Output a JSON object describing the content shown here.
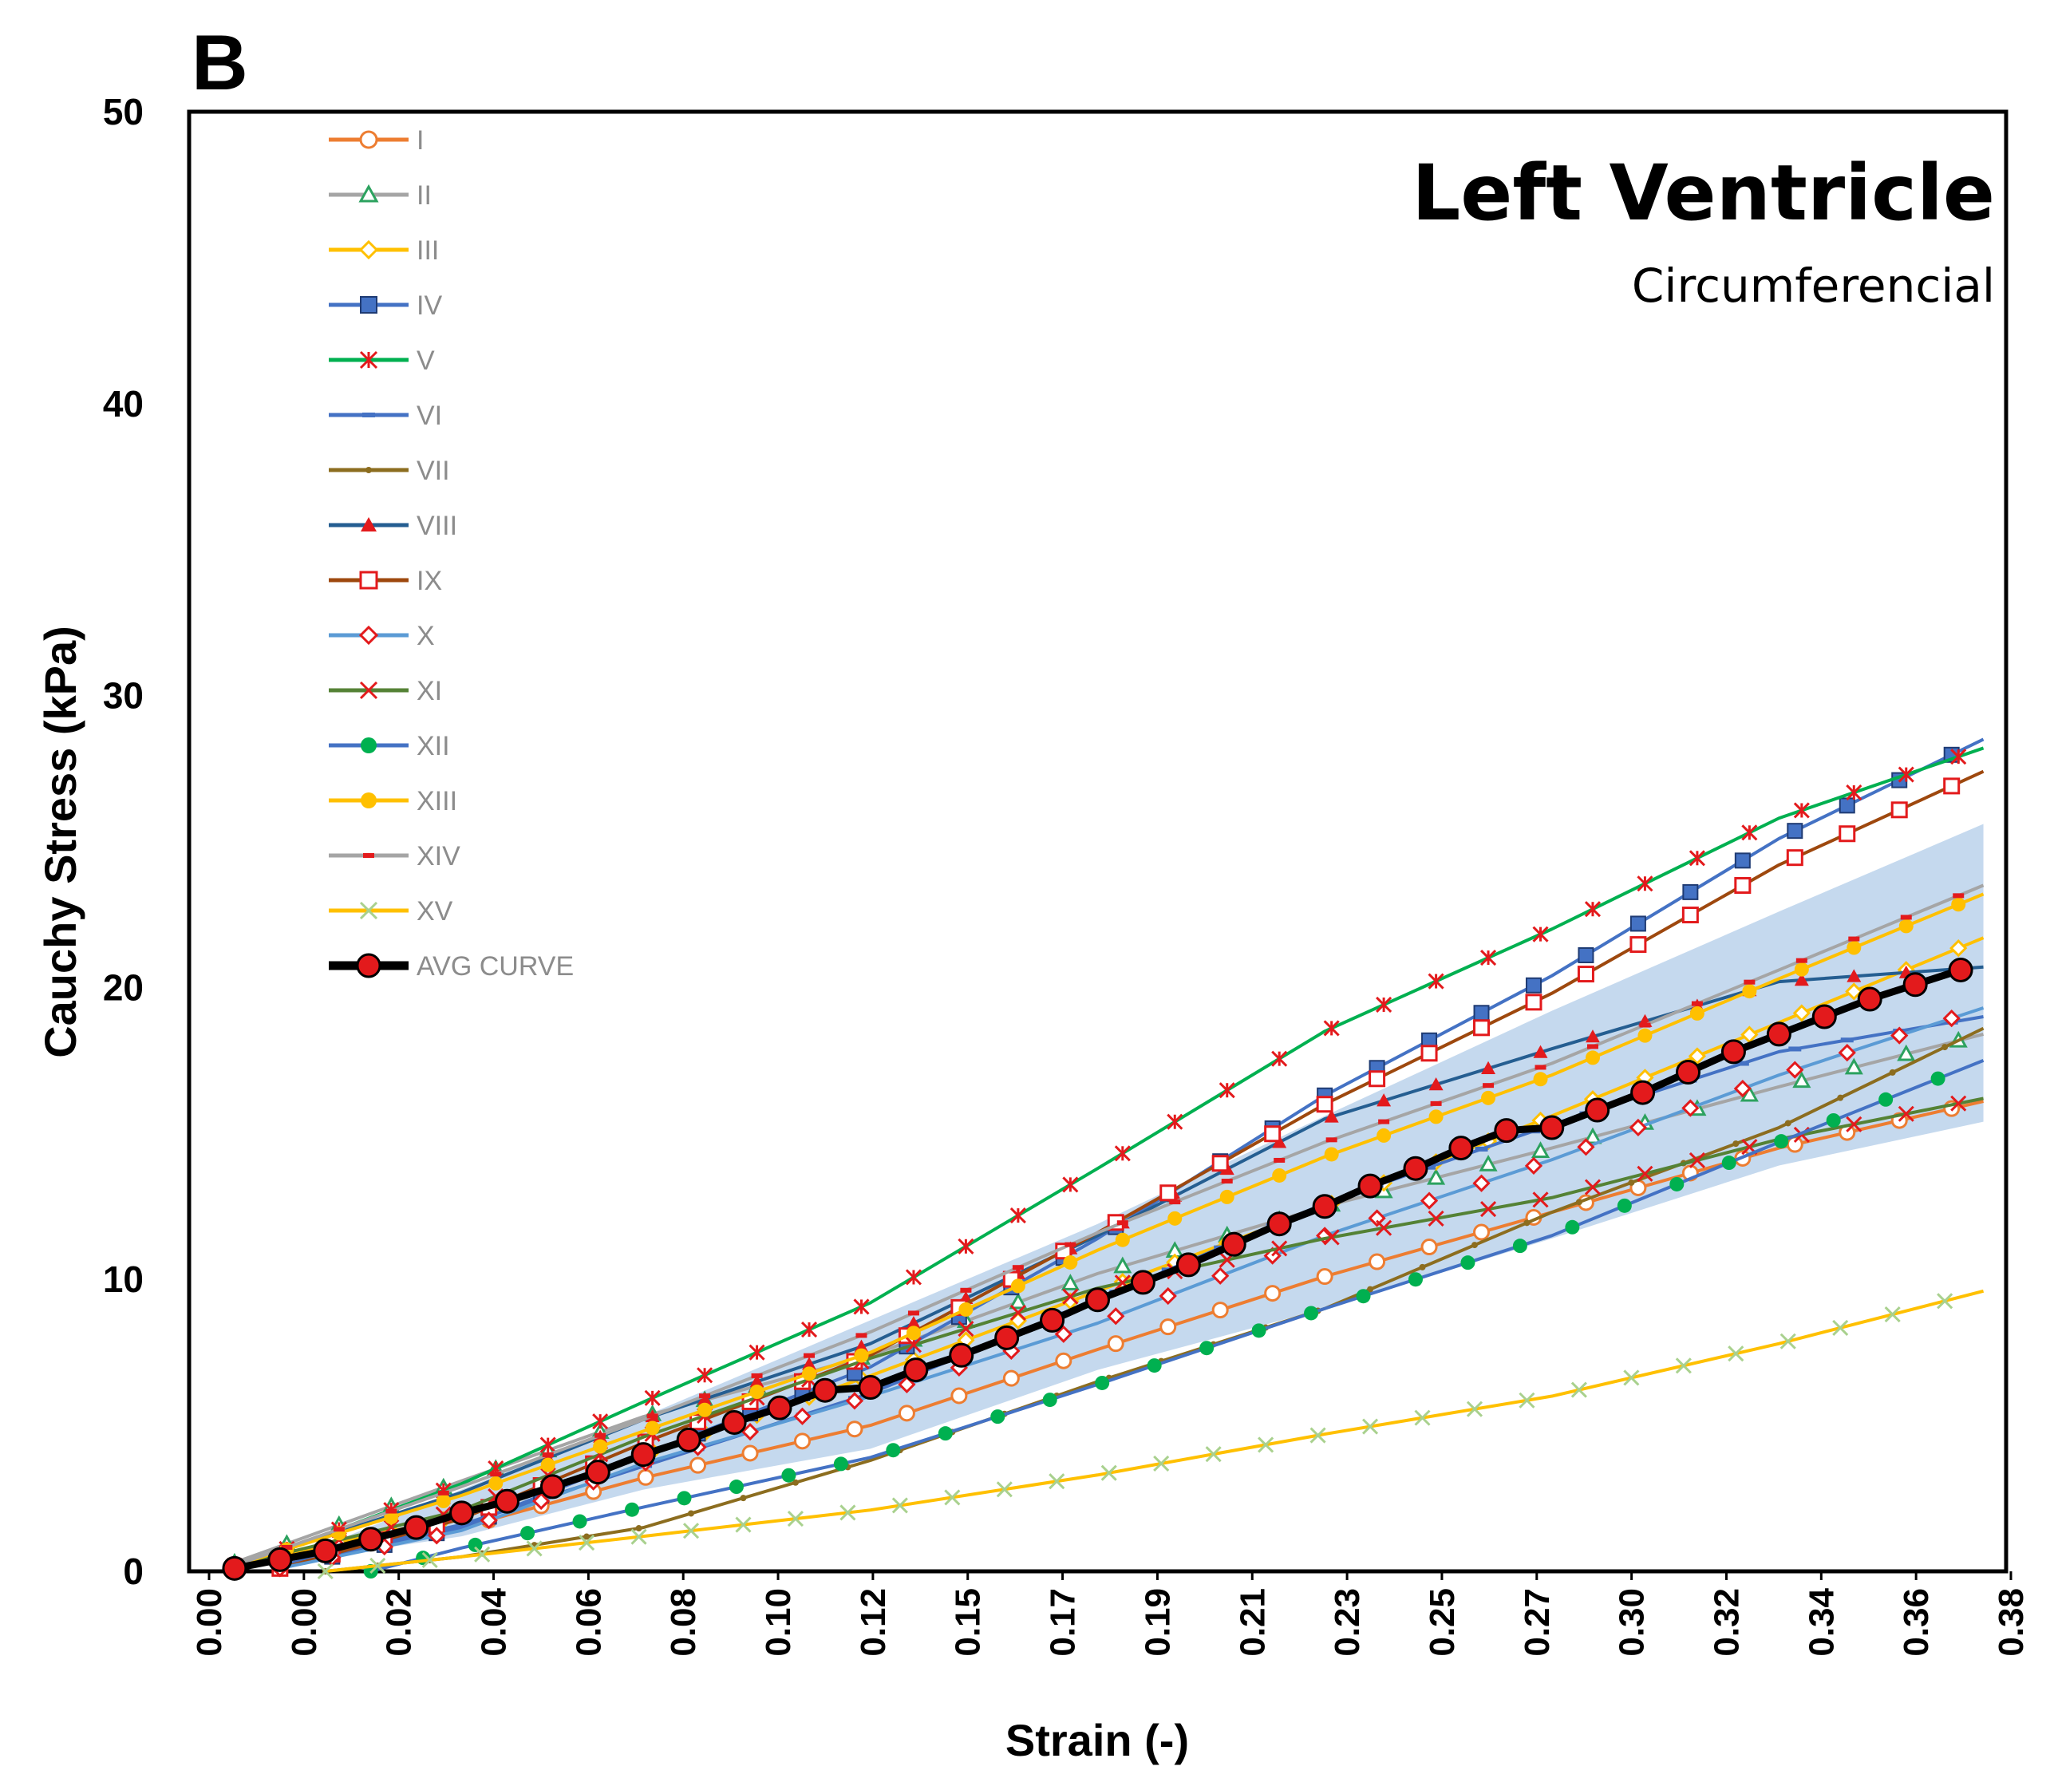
{
  "panel_label": "B",
  "chart_data": {
    "type": "line",
    "title": "Left Ventricle",
    "subtitle": "Circumferencial",
    "xlabel": "Strain (-)",
    "ylabel": "Cauchy Stress (kPa)",
    "xlim": [
      0.0,
      0.4
    ],
    "ylim": [
      0,
      50
    ],
    "yticks": [
      0,
      10,
      20,
      30,
      40,
      50
    ],
    "xtick_labels": [
      "0.00",
      "0.00",
      "0.02",
      "0.04",
      "0.06",
      "0.08",
      "0.10",
      "0.12",
      "0.15",
      "0.17",
      "0.19",
      "0.21",
      "0.23",
      "0.25",
      "0.27",
      "0.30",
      "0.32",
      "0.34",
      "0.36",
      "0.38"
    ],
    "grid": false,
    "legend_position": "top-left",
    "band": {
      "name": "std band",
      "color": "#b7d0ea",
      "x": [
        0.03,
        0.06,
        0.1,
        0.15,
        0.2,
        0.25,
        0.3,
        0.35,
        0.395
      ],
      "upper": [
        0.9,
        2.8,
        5.3,
        8.6,
        11.9,
        15.6,
        19.2,
        22.6,
        25.6
      ],
      "lower": [
        0.5,
        1.2,
        2.8,
        4.2,
        6.9,
        9.0,
        11.4,
        13.9,
        15.4
      ]
    },
    "series": [
      {
        "name": "I",
        "color": "#ed7d31",
        "marker": "circle-open",
        "x": [
          0.02,
          0.06,
          0.1,
          0.15,
          0.2,
          0.25,
          0.3,
          0.35,
          0.395
        ],
        "y": [
          0.1,
          1.5,
          3.2,
          5.0,
          7.6,
          10.1,
          12.3,
          14.5,
          16.1
        ]
      },
      {
        "name": "II",
        "color": "#a5a5a5",
        "marker": "triangle-open",
        "x": [
          0.01,
          0.06,
          0.1,
          0.15,
          0.2,
          0.25,
          0.3,
          0.35,
          0.395
        ],
        "y": [
          0.3,
          3.1,
          5.3,
          7.4,
          10.2,
          12.5,
          14.5,
          16.6,
          18.4
        ]
      },
      {
        "name": "III",
        "color": "#ffc000",
        "marker": "diamond-open",
        "x": [
          0.01,
          0.06,
          0.1,
          0.15,
          0.2,
          0.25,
          0.3,
          0.35,
          0.395
        ],
        "y": [
          0.2,
          1.9,
          4.0,
          6.7,
          9.6,
          12.5,
          15.6,
          18.8,
          21.7
        ]
      },
      {
        "name": "IV",
        "color": "#4472c4",
        "marker": "square-filled",
        "x": [
          0.02,
          0.06,
          0.1,
          0.15,
          0.2,
          0.25,
          0.3,
          0.35,
          0.395
        ],
        "y": [
          0.1,
          1.5,
          4.0,
          7.0,
          11.4,
          16.3,
          20.4,
          25.1,
          28.5
        ]
      },
      {
        "name": "V",
        "color": "#00b050",
        "marker": "asterisk",
        "x": [
          0.01,
          0.06,
          0.1,
          0.15,
          0.2,
          0.25,
          0.3,
          0.35,
          0.395
        ],
        "y": [
          0.1,
          3.0,
          5.8,
          9.2,
          13.8,
          18.5,
          22.0,
          25.8,
          28.2
        ]
      },
      {
        "name": "VI",
        "color": "#4472c4",
        "marker": "dash",
        "x": [
          0.02,
          0.06,
          0.1,
          0.15,
          0.2,
          0.25,
          0.3,
          0.35,
          0.395
        ],
        "y": [
          0.2,
          1.6,
          3.6,
          6.1,
          9.3,
          12.6,
          15.3,
          17.8,
          19.0
        ]
      },
      {
        "name": "VII",
        "color": "#8c6d1f",
        "marker": "dot-small",
        "x": [
          0.03,
          0.06,
          0.1,
          0.15,
          0.2,
          0.25,
          0.3,
          0.35,
          0.395
        ],
        "y": [
          0.0,
          0.5,
          1.5,
          3.8,
          6.5,
          9.0,
          12.3,
          15.2,
          18.6
        ]
      },
      {
        "name": "VIII",
        "color": "#255e91",
        "marker": "triangle-red",
        "x": [
          0.01,
          0.06,
          0.1,
          0.15,
          0.2,
          0.25,
          0.3,
          0.35,
          0.395
        ],
        "y": [
          0.2,
          2.7,
          5.2,
          7.8,
          11.5,
          15.5,
          17.9,
          20.2,
          20.7
        ]
      },
      {
        "name": "IX",
        "color": "#9e480e",
        "marker": "square-red-open",
        "x": [
          0.02,
          0.06,
          0.1,
          0.15,
          0.2,
          0.25,
          0.3,
          0.35,
          0.395
        ],
        "y": [
          0.1,
          1.8,
          4.4,
          7.4,
          11.6,
          16.0,
          19.8,
          24.2,
          27.4
        ]
      },
      {
        "name": "X",
        "color": "#5b9bd5",
        "marker": "diamond-red-open",
        "x": [
          0.02,
          0.06,
          0.1,
          0.15,
          0.2,
          0.25,
          0.3,
          0.35,
          0.395
        ],
        "y": [
          0.1,
          1.4,
          3.7,
          6.0,
          8.5,
          11.5,
          14.1,
          17.0,
          19.3
        ]
      },
      {
        "name": "XI",
        "color": "#548235",
        "marker": "x-red",
        "x": [
          0.01,
          0.06,
          0.1,
          0.15,
          0.2,
          0.25,
          0.3,
          0.35,
          0.395
        ],
        "y": [
          0.2,
          2.1,
          4.6,
          7.3,
          9.7,
          11.4,
          12.8,
          14.8,
          16.2
        ]
      },
      {
        "name": "XII",
        "color": "#4472c4",
        "marker": "dot-green",
        "x": [
          0.04,
          0.06,
          0.1,
          0.15,
          0.2,
          0.25,
          0.3,
          0.35,
          0.395
        ],
        "y": [
          0.0,
          0.8,
          2.2,
          3.9,
          6.4,
          9.0,
          11.5,
          14.7,
          17.5
        ]
      },
      {
        "name": "XIII",
        "color": "#ffc000",
        "marker": "dot-yellow",
        "x": [
          0.01,
          0.06,
          0.1,
          0.15,
          0.2,
          0.25,
          0.3,
          0.35,
          0.395
        ],
        "y": [
          0.2,
          2.6,
          4.8,
          7.5,
          11.0,
          14.2,
          17.0,
          20.3,
          23.2
        ]
      },
      {
        "name": "XIV",
        "color": "#a5a5a5",
        "marker": "dash-red",
        "x": [
          0.01,
          0.06,
          0.1,
          0.15,
          0.2,
          0.25,
          0.3,
          0.35,
          0.395
        ],
        "y": [
          0.2,
          2.9,
          5.2,
          8.2,
          11.6,
          14.7,
          17.4,
          20.6,
          23.5
        ]
      },
      {
        "name": "XV",
        "color": "#ffc000",
        "marker": "x-green",
        "x": [
          0.03,
          0.06,
          0.1,
          0.15,
          0.2,
          0.25,
          0.3,
          0.35,
          0.395
        ],
        "y": [
          0.0,
          0.5,
          1.2,
          2.1,
          3.3,
          4.7,
          6.0,
          7.8,
          9.6
        ]
      },
      {
        "name": "AVG CURVE",
        "color": "#000000",
        "marker": "dot-red",
        "thick": true,
        "x": [
          0.01,
          0.02,
          0.03,
          0.04,
          0.05,
          0.06,
          0.07,
          0.08,
          0.09,
          0.1,
          0.11,
          0.12,
          0.13,
          0.14,
          0.15,
          0.16,
          0.17,
          0.18,
          0.19,
          0.2,
          0.21,
          0.22,
          0.23,
          0.24,
          0.25,
          0.26,
          0.27,
          0.28,
          0.29,
          0.3,
          0.31,
          0.32,
          0.33,
          0.34,
          0.35,
          0.36,
          0.37,
          0.38,
          0.39
        ],
        "y": [
          0.1,
          0.4,
          0.7,
          1.1,
          1.5,
          2.0,
          2.4,
          2.9,
          3.4,
          4.0,
          4.5,
          5.1,
          5.6,
          6.2,
          6.3,
          6.9,
          7.4,
          8.0,
          8.6,
          9.3,
          9.9,
          10.5,
          11.2,
          11.9,
          12.5,
          13.2,
          13.8,
          14.5,
          15.1,
          15.2,
          15.8,
          16.4,
          17.1,
          17.8,
          18.4,
          19.0,
          19.6,
          20.1,
          20.6
        ]
      }
    ]
  }
}
